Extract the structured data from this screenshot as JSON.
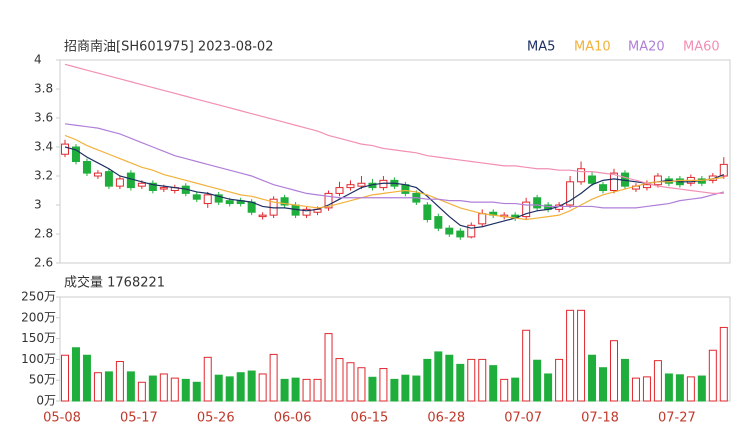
{
  "chart_data": {
    "type": "candlestick",
    "title": "招商南油[SH601975] 2023-08-02",
    "categories": [
      "05-08",
      null,
      null,
      null,
      null,
      null,
      null,
      "05-17",
      null,
      null,
      null,
      null,
      null,
      null,
      "05-26",
      null,
      null,
      null,
      null,
      null,
      null,
      "06-06",
      null,
      null,
      null,
      null,
      null,
      null,
      "06-15",
      null,
      null,
      null,
      null,
      null,
      null,
      "06-28",
      null,
      null,
      null,
      null,
      null,
      null,
      "07-07",
      null,
      null,
      null,
      null,
      null,
      null,
      "07-18",
      null,
      null,
      null,
      null,
      null,
      null,
      "07-27",
      null,
      null,
      null,
      null
    ],
    "open": [
      3.35,
      3.4,
      3.3,
      3.2,
      3.23,
      3.13,
      3.22,
      3.13,
      3.15,
      3.11,
      3.1,
      3.13,
      3.07,
      3.01,
      3.07,
      3.03,
      3.03,
      3.02,
      2.92,
      2.93,
      3.05,
      3.0,
      2.93,
      2.95,
      2.98,
      3.08,
      3.12,
      3.13,
      3.15,
      3.12,
      3.17,
      3.14,
      3.08,
      3.0,
      2.92,
      2.84,
      2.82,
      2.78,
      2.87,
      2.95,
      2.92,
      2.93,
      2.92,
      3.05,
      3.0,
      2.97,
      3.0,
      3.16,
      3.2,
      3.14,
      3.1,
      3.22,
      3.11,
      3.12,
      3.14,
      3.18,
      3.18,
      3.15,
      3.18,
      3.17,
      3.2
    ],
    "high": [
      3.45,
      3.42,
      3.32,
      3.24,
      3.25,
      3.2,
      3.24,
      3.17,
      3.17,
      3.14,
      3.14,
      3.15,
      3.09,
      3.09,
      3.09,
      3.05,
      3.05,
      3.04,
      2.95,
      3.06,
      3.07,
      3.02,
      2.99,
      2.99,
      3.1,
      3.16,
      3.17,
      3.2,
      3.18,
      3.2,
      3.19,
      3.16,
      3.1,
      3.02,
      2.94,
      2.86,
      2.84,
      2.88,
      2.97,
      2.97,
      2.95,
      2.95,
      3.05,
      3.07,
      3.02,
      3.02,
      3.2,
      3.3,
      3.23,
      3.16,
      3.25,
      3.24,
      3.15,
      3.17,
      3.22,
      3.2,
      3.2,
      3.21,
      3.2,
      3.22,
      3.33
    ],
    "low": [
      3.33,
      3.28,
      3.2,
      3.18,
      3.11,
      3.11,
      3.1,
      3.11,
      3.08,
      3.09,
      3.08,
      3.06,
      3.02,
      2.98,
      3.0,
      2.99,
      2.99,
      2.93,
      2.9,
      2.91,
      2.98,
      2.91,
      2.91,
      2.93,
      2.96,
      3.06,
      3.1,
      3.11,
      3.1,
      3.1,
      3.11,
      3.06,
      3.0,
      2.88,
      2.82,
      2.78,
      2.76,
      2.77,
      2.85,
      2.91,
      2.9,
      2.89,
      2.9,
      2.96,
      2.95,
      2.95,
      2.98,
      3.14,
      3.13,
      3.08,
      3.08,
      3.11,
      3.09,
      3.1,
      3.12,
      3.13,
      3.12,
      3.13,
      3.13,
      3.15,
      3.18
    ],
    "close": [
      3.42,
      3.3,
      3.22,
      3.22,
      3.13,
      3.18,
      3.12,
      3.15,
      3.1,
      3.12,
      3.12,
      3.08,
      3.04,
      3.07,
      3.02,
      3.01,
      3.01,
      2.95,
      2.93,
      3.04,
      3.0,
      2.93,
      2.97,
      2.97,
      3.08,
      3.12,
      3.14,
      3.15,
      3.12,
      3.17,
      3.13,
      3.08,
      3.02,
      2.9,
      2.84,
      2.8,
      2.78,
      2.86,
      2.94,
      2.93,
      2.93,
      2.91,
      3.02,
      2.98,
      2.97,
      3.0,
      3.16,
      3.25,
      3.15,
      3.1,
      3.22,
      3.13,
      3.13,
      3.14,
      3.2,
      3.15,
      3.14,
      3.19,
      3.15,
      3.2,
      3.28
    ],
    "up_color": "#e0282e",
    "down_color": "#1fae3c",
    "ylim": [
      2.6,
      4
    ],
    "yticks": [
      2.6,
      2.8,
      3,
      3.2,
      3.4,
      3.6,
      3.8,
      4
    ],
    "grid": false,
    "series": [
      {
        "name": "MA5",
        "color": "#1d2f63",
        "values": [
          3.4,
          3.38,
          3.33,
          3.29,
          3.25,
          3.2,
          3.18,
          3.16,
          3.14,
          3.13,
          3.12,
          3.11,
          3.09,
          3.08,
          3.06,
          3.04,
          3.03,
          3.02,
          2.99,
          2.98,
          2.98,
          2.97,
          2.96,
          2.97,
          3.0,
          3.04,
          3.08,
          3.12,
          3.14,
          3.15,
          3.15,
          3.14,
          3.12,
          3.06,
          2.99,
          2.92,
          2.86,
          2.84,
          2.85,
          2.87,
          2.89,
          2.91,
          2.94,
          2.96,
          2.97,
          2.99,
          3.03,
          3.08,
          3.14,
          3.17,
          3.18,
          3.17,
          3.16,
          3.15,
          3.16,
          3.17,
          3.16,
          3.16,
          3.17,
          3.18,
          3.21
        ]
      },
      {
        "name": "MA10",
        "color": "#f2b13a",
        "values": [
          3.48,
          3.45,
          3.41,
          3.38,
          3.35,
          3.32,
          3.29,
          3.26,
          3.24,
          3.21,
          3.19,
          3.17,
          3.15,
          3.13,
          3.11,
          3.09,
          3.07,
          3.06,
          3.04,
          3.02,
          3.01,
          3.0,
          2.99,
          2.98,
          2.99,
          3.01,
          3.03,
          3.05,
          3.07,
          3.08,
          3.09,
          3.1,
          3.09,
          3.07,
          3.04,
          3.01,
          2.98,
          2.96,
          2.94,
          2.93,
          2.92,
          2.91,
          2.9,
          2.91,
          2.92,
          2.93,
          2.96,
          3.0,
          3.04,
          3.07,
          3.09,
          3.11,
          3.13,
          3.15,
          3.16,
          3.16,
          3.17,
          3.17,
          3.17,
          3.18,
          3.19
        ]
      },
      {
        "name": "MA20",
        "color": "#b07fd8",
        "values": [
          3.56,
          3.55,
          3.54,
          3.53,
          3.51,
          3.49,
          3.46,
          3.43,
          3.4,
          3.37,
          3.34,
          3.32,
          3.3,
          3.28,
          3.26,
          3.24,
          3.22,
          3.2,
          3.17,
          3.14,
          3.12,
          3.1,
          3.08,
          3.07,
          3.06,
          3.05,
          3.05,
          3.05,
          3.05,
          3.05,
          3.05,
          3.05,
          3.05,
          3.04,
          3.04,
          3.03,
          3.03,
          3.02,
          3.02,
          3.02,
          3.01,
          3.01,
          3.0,
          3.0,
          2.99,
          2.99,
          2.99,
          2.99,
          2.99,
          2.98,
          2.98,
          2.98,
          2.98,
          2.99,
          3.0,
          3.01,
          3.03,
          3.04,
          3.05,
          3.07,
          3.09
        ]
      },
      {
        "name": "MA60",
        "color": "#f28fb4",
        "values": [
          3.97,
          3.95,
          3.93,
          3.91,
          3.89,
          3.87,
          3.85,
          3.83,
          3.81,
          3.79,
          3.77,
          3.75,
          3.73,
          3.71,
          3.69,
          3.67,
          3.65,
          3.63,
          3.61,
          3.59,
          3.57,
          3.55,
          3.53,
          3.51,
          3.48,
          3.46,
          3.44,
          3.42,
          3.41,
          3.39,
          3.38,
          3.37,
          3.36,
          3.34,
          3.33,
          3.32,
          3.31,
          3.3,
          3.29,
          3.28,
          3.27,
          3.27,
          3.26,
          3.25,
          3.25,
          3.24,
          3.24,
          3.23,
          3.23,
          3.22,
          3.21,
          3.19,
          3.17,
          3.15,
          3.13,
          3.12,
          3.11,
          3.1,
          3.09,
          3.08,
          3.08
        ]
      }
    ],
    "volume": {
      "title": "成交量 1768221",
      "values": [
        110,
        128,
        110,
        68,
        70,
        95,
        70,
        45,
        60,
        65,
        55,
        52,
        45,
        105,
        62,
        58,
        68,
        72,
        65,
        112,
        52,
        55,
        52,
        52,
        162,
        102,
        92,
        80,
        57,
        78,
        52,
        62,
        60,
        100,
        118,
        110,
        88,
        100,
        100,
        85,
        52,
        55,
        170,
        98,
        65,
        100,
        218,
        218,
        110,
        80,
        145,
        100,
        55,
        58,
        97,
        65,
        63,
        58,
        60,
        122,
        176.8221
      ],
      "ylim": [
        0,
        250
      ],
      "yticks": [
        {
          "value": 0,
          "label": "0万"
        },
        {
          "value": 50,
          "label": "50万"
        },
        {
          "value": 100,
          "label": "100万"
        },
        {
          "value": 150,
          "label": "150万"
        },
        {
          "value": 200,
          "label": "200万"
        },
        {
          "value": 250,
          "label": "250万"
        }
      ]
    }
  }
}
